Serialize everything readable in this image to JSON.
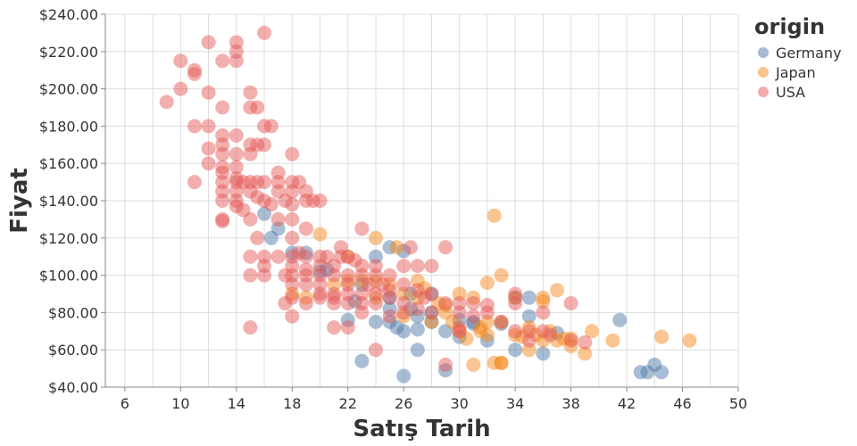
{
  "chart_data": {
    "type": "scatter",
    "xlabel": "Satış Tarih",
    "ylabel": "Fiyat",
    "xlim": [
      4.6,
      50
    ],
    "ylim": [
      40,
      240
    ],
    "xticks": [
      6,
      10,
      14,
      18,
      22,
      26,
      30,
      34,
      38,
      42,
      46,
      50
    ],
    "yticks": [
      40,
      60,
      80,
      100,
      120,
      140,
      160,
      180,
      200,
      220,
      240
    ],
    "ytick_labels": [
      "$40.00",
      "$60.00",
      "$80.00",
      "$100.00",
      "$120.00",
      "$140.00",
      "$160.00",
      "$180.00",
      "$200.00",
      "$220.00",
      "$240.00"
    ],
    "grid": true,
    "legend": {
      "title": "origin",
      "placement": "right",
      "entries": [
        {
          "name": "Germany",
          "color": "#4c78a8"
        },
        {
          "name": "Japan",
          "color": "#f58518"
        },
        {
          "name": "USA",
          "color": "#e45756"
        }
      ]
    },
    "series": [
      {
        "name": "Germany",
        "color": "#4c78a8",
        "points": [
          [
            16,
            133
          ],
          [
            17,
            125
          ],
          [
            16.5,
            120
          ],
          [
            18,
            112
          ],
          [
            19,
            112
          ],
          [
            20,
            102
          ],
          [
            20.5,
            103
          ],
          [
            22,
            76
          ],
          [
            22.5,
            86
          ],
          [
            23,
            95
          ],
          [
            24,
            75
          ],
          [
            24,
            110
          ],
          [
            25,
            115
          ],
          [
            25,
            88
          ],
          [
            25,
            82
          ],
          [
            25.5,
            72
          ],
          [
            26,
            113
          ],
          [
            26,
            46
          ],
          [
            26,
            70
          ],
          [
            26.5,
            90
          ],
          [
            27,
            78
          ],
          [
            27,
            60
          ],
          [
            27,
            71
          ],
          [
            28,
            80
          ],
          [
            28,
            75
          ],
          [
            29,
            70
          ],
          [
            29,
            49
          ],
          [
            30,
            67
          ],
          [
            30,
            76
          ],
          [
            31,
            75
          ],
          [
            31,
            74
          ],
          [
            32,
            65
          ],
          [
            33,
            74
          ],
          [
            34,
            60
          ],
          [
            34,
            88
          ],
          [
            35,
            78
          ],
          [
            35,
            88
          ],
          [
            36,
            58
          ],
          [
            37,
            69
          ],
          [
            41.5,
            76
          ],
          [
            43,
            48
          ],
          [
            43.5,
            48
          ],
          [
            44,
            52
          ],
          [
            44.5,
            48
          ],
          [
            23,
            54
          ],
          [
            25,
            75
          ],
          [
            28,
            90
          ],
          [
            26.5,
            82
          ]
        ]
      },
      {
        "name": "Japan",
        "color": "#f58518",
        "points": [
          [
            18,
            90
          ],
          [
            19,
            88
          ],
          [
            20,
            122
          ],
          [
            21,
            95
          ],
          [
            22,
            97
          ],
          [
            23,
            97
          ],
          [
            24,
            97
          ],
          [
            24,
            120
          ],
          [
            25,
            95
          ],
          [
            25.5,
            115
          ],
          [
            26,
            90
          ],
          [
            27,
            97
          ],
          [
            27,
            88
          ],
          [
            27.5,
            93
          ],
          [
            28,
            75
          ],
          [
            28.5,
            85
          ],
          [
            29,
            80
          ],
          [
            29.5,
            75
          ],
          [
            30,
            90
          ],
          [
            30,
            70
          ],
          [
            31,
            52
          ],
          [
            31,
            88
          ],
          [
            31.5,
            70
          ],
          [
            32,
            68
          ],
          [
            32,
            96
          ],
          [
            32,
            75
          ],
          [
            32.5,
            132
          ],
          [
            33,
            75
          ],
          [
            33,
            53
          ],
          [
            33,
            100
          ],
          [
            34,
            68
          ],
          [
            34,
            88
          ],
          [
            34.5,
            67
          ],
          [
            35,
            60
          ],
          [
            35,
            72
          ],
          [
            35.5,
            68
          ],
          [
            36,
            88
          ],
          [
            36,
            65
          ],
          [
            36.5,
            70
          ],
          [
            37,
            92
          ],
          [
            37,
            65
          ],
          [
            37.5,
            66
          ],
          [
            38,
            62
          ],
          [
            38,
            66
          ],
          [
            39,
            58
          ],
          [
            39.5,
            70
          ],
          [
            41,
            65
          ],
          [
            44.5,
            67
          ],
          [
            46.5,
            65
          ],
          [
            33,
            53
          ],
          [
            31.5,
            72
          ],
          [
            29,
            84
          ],
          [
            30.5,
            66
          ],
          [
            32.5,
            53
          ],
          [
            36,
            86
          ],
          [
            24,
            88
          ],
          [
            22,
            110
          ],
          [
            26,
            78
          ]
        ]
      },
      {
        "name": "USA",
        "color": "#e45756",
        "points": [
          [
            9,
            193
          ],
          [
            10,
            215
          ],
          [
            10,
            200
          ],
          [
            11,
            210
          ],
          [
            11,
            208
          ],
          [
            11,
            180
          ],
          [
            11,
            150
          ],
          [
            12,
            225
          ],
          [
            12,
            198
          ],
          [
            12,
            180
          ],
          [
            12,
            168
          ],
          [
            12,
            160
          ],
          [
            13,
            215
          ],
          [
            13,
            190
          ],
          [
            13,
            175
          ],
          [
            13,
            170
          ],
          [
            13,
            165
          ],
          [
            13,
            158
          ],
          [
            13,
            155
          ],
          [
            13,
            150
          ],
          [
            13,
            145
          ],
          [
            13,
            140
          ],
          [
            13,
            130
          ],
          [
            13,
            129
          ],
          [
            14,
            225
          ],
          [
            14,
            220
          ],
          [
            14,
            215
          ],
          [
            14,
            175
          ],
          [
            14,
            165
          ],
          [
            14,
            158
          ],
          [
            14,
            152
          ],
          [
            14,
            150
          ],
          [
            14,
            145
          ],
          [
            14,
            140
          ],
          [
            14,
            137
          ],
          [
            14.5,
            150
          ],
          [
            14.5,
            135
          ],
          [
            15,
            198
          ],
          [
            15,
            190
          ],
          [
            15,
            170
          ],
          [
            15,
            165
          ],
          [
            15,
            150
          ],
          [
            15,
            145
          ],
          [
            15,
            130
          ],
          [
            15,
            110
          ],
          [
            15,
            100
          ],
          [
            15,
            72
          ],
          [
            15.5,
            190
          ],
          [
            15.5,
            170
          ],
          [
            15.5,
            150
          ],
          [
            15.5,
            142
          ],
          [
            15.5,
            120
          ],
          [
            16,
            230
          ],
          [
            16,
            180
          ],
          [
            16,
            170
          ],
          [
            16,
            150
          ],
          [
            16,
            140
          ],
          [
            16,
            110
          ],
          [
            16,
            105
          ],
          [
            16,
            100
          ],
          [
            16.5,
            180
          ],
          [
            16.5,
            138
          ],
          [
            17,
            155
          ],
          [
            17,
            150
          ],
          [
            17,
            145
          ],
          [
            17,
            130
          ],
          [
            17,
            110
          ],
          [
            17.5,
            140
          ],
          [
            17.5,
            100
          ],
          [
            17.5,
            85
          ],
          [
            18,
            165
          ],
          [
            18,
            150
          ],
          [
            18,
            145
          ],
          [
            18,
            138
          ],
          [
            18,
            130
          ],
          [
            18,
            120
          ],
          [
            18,
            110
          ],
          [
            18,
            105
          ],
          [
            18,
            100
          ],
          [
            18,
            95
          ],
          [
            18,
            88
          ],
          [
            18,
            78
          ],
          [
            18.5,
            150
          ],
          [
            18.5,
            112
          ],
          [
            19,
            145
          ],
          [
            19,
            140
          ],
          [
            19,
            125
          ],
          [
            19,
            110
          ],
          [
            19,
            100
          ],
          [
            19,
            95
          ],
          [
            19,
            85
          ],
          [
            19.5,
            140
          ],
          [
            20,
            140
          ],
          [
            20,
            110
          ],
          [
            20,
            105
          ],
          [
            20,
            100
          ],
          [
            20,
            90
          ],
          [
            20,
            88
          ],
          [
            20.5,
            110
          ],
          [
            21,
            105
          ],
          [
            21,
            100
          ],
          [
            21,
            90
          ],
          [
            21,
            85
          ],
          [
            21,
            72
          ],
          [
            21.5,
            115
          ],
          [
            21.5,
            110
          ],
          [
            22,
            110
          ],
          [
            22,
            100
          ],
          [
            22,
            90
          ],
          [
            22,
            85
          ],
          [
            22,
            72
          ],
          [
            22.5,
            108
          ],
          [
            23,
            125
          ],
          [
            23,
            105
          ],
          [
            23,
            100
          ],
          [
            23,
            90
          ],
          [
            23,
            85
          ],
          [
            23,
            80
          ],
          [
            23.5,
            95
          ],
          [
            24,
            100
          ],
          [
            24,
            90
          ],
          [
            24,
            85
          ],
          [
            24,
            60
          ],
          [
            24.5,
            95
          ],
          [
            25,
            100
          ],
          [
            25,
            92
          ],
          [
            25,
            88
          ],
          [
            26,
            105
          ],
          [
            26,
            95
          ],
          [
            26,
            85
          ],
          [
            26,
            80
          ],
          [
            26.5,
            115
          ],
          [
            27,
            105
          ],
          [
            27,
            92
          ],
          [
            27.5,
            88
          ],
          [
            28,
            105
          ],
          [
            28,
            90
          ],
          [
            28,
            80
          ],
          [
            29,
            115
          ],
          [
            29,
            85
          ],
          [
            29,
            52
          ],
          [
            30,
            85
          ],
          [
            30,
            80
          ],
          [
            30,
            70
          ],
          [
            31,
            85
          ],
          [
            31,
            78
          ],
          [
            32,
            84
          ],
          [
            33,
            75
          ],
          [
            34,
            90
          ],
          [
            34,
            85
          ],
          [
            34,
            70
          ],
          [
            35,
            65
          ],
          [
            36,
            80
          ],
          [
            36,
            70
          ],
          [
            36.5,
            68
          ],
          [
            38,
            85
          ],
          [
            38,
            65
          ],
          [
            39,
            64
          ],
          [
            21,
            88
          ],
          [
            20,
            95
          ],
          [
            25,
            78
          ],
          [
            27,
            82
          ],
          [
            24,
            105
          ],
          [
            22,
            95
          ],
          [
            19,
            103
          ],
          [
            30,
            72
          ],
          [
            32,
            80
          ],
          [
            35,
            70
          ]
        ]
      }
    ]
  }
}
